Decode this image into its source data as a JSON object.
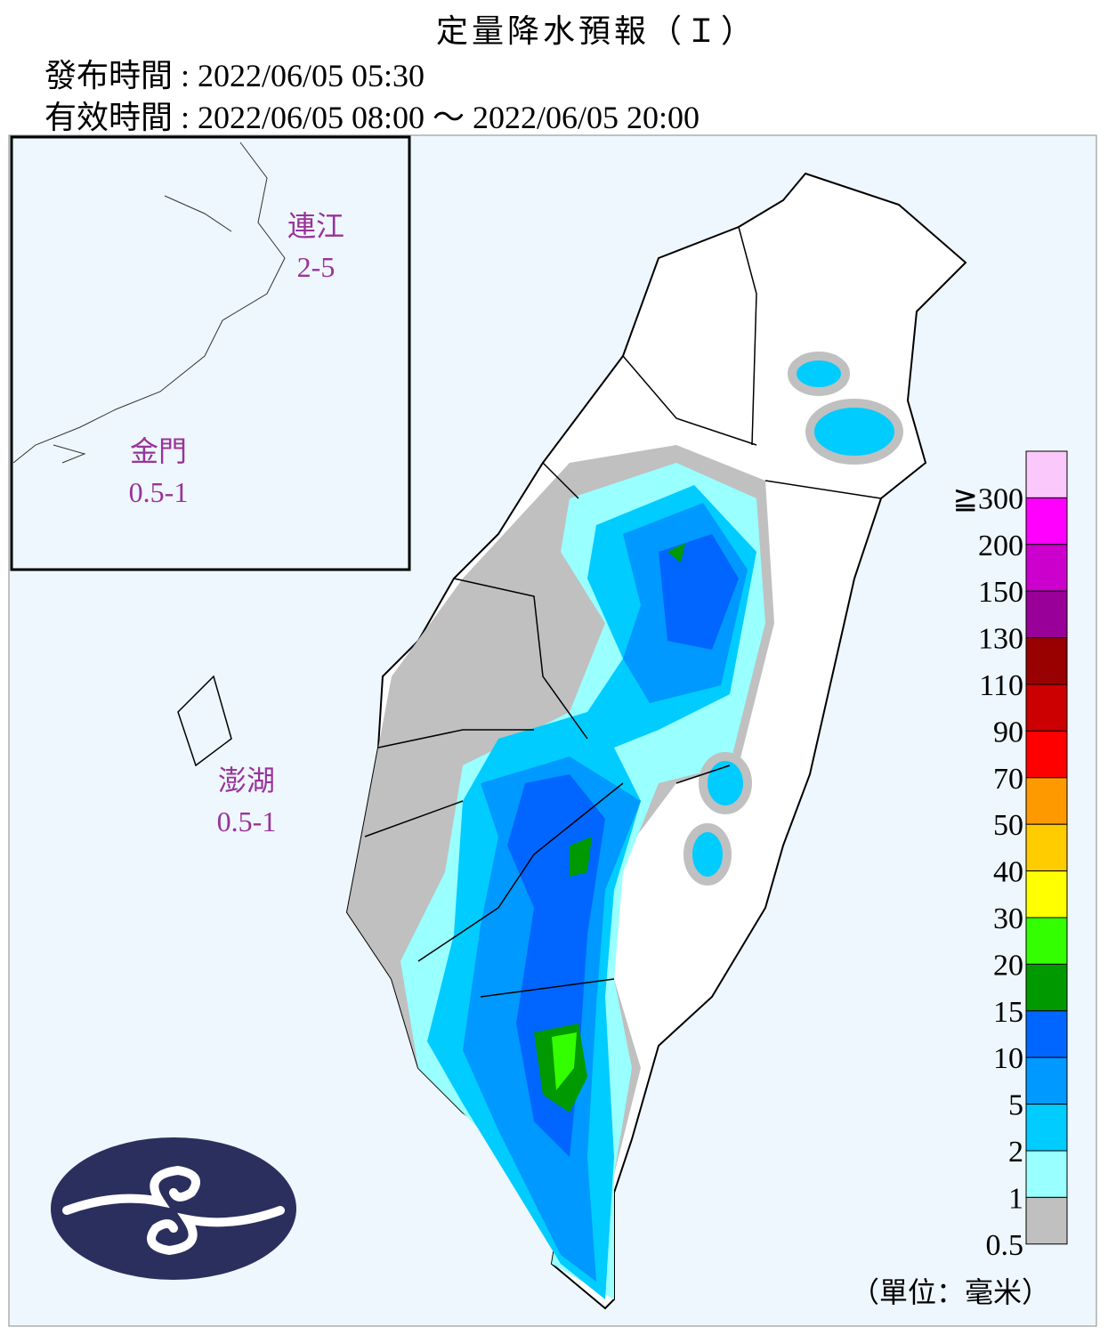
{
  "header": {
    "title": "定量降水預報（Ｉ）",
    "issued": "發布時間 : 2022/06/05 05:30",
    "valid": "有效時間 : 2022/06/05 08:00 ～ 2022/06/05 20:00"
  },
  "islands": [
    {
      "name": "連江",
      "value": "2-5"
    },
    {
      "name": "金門",
      "value": "0.5-1"
    },
    {
      "name": "澎湖",
      "value": "0.5-1"
    }
  ],
  "legend": {
    "items": [
      {
        "label": "≧300",
        "color": "#fac8fa"
      },
      {
        "label": "200",
        "color": "#ff00ff"
      },
      {
        "label": "150",
        "color": "#cc00cc"
      },
      {
        "label": "130",
        "color": "#990099"
      },
      {
        "label": "110",
        "color": "#990000"
      },
      {
        "label": "90",
        "color": "#cc0000"
      },
      {
        "label": "70",
        "color": "#ff0000"
      },
      {
        "label": "50",
        "color": "#ff9900"
      },
      {
        "label": "40",
        "color": "#ffcc00"
      },
      {
        "label": "30",
        "color": "#ffff00"
      },
      {
        "label": "20",
        "color": "#33ff00"
      },
      {
        "label": "15",
        "color": "#009900"
      },
      {
        "label": "10",
        "color": "#0066ff"
      },
      {
        "label": "5",
        "color": "#0099ff"
      },
      {
        "label": "2",
        "color": "#00ccff"
      },
      {
        "label": "1",
        "color": "#99ffff"
      },
      {
        "label": "0.5",
        "color": "#c0c0c0"
      }
    ],
    "unit": "（單位：毫米）"
  }
}
